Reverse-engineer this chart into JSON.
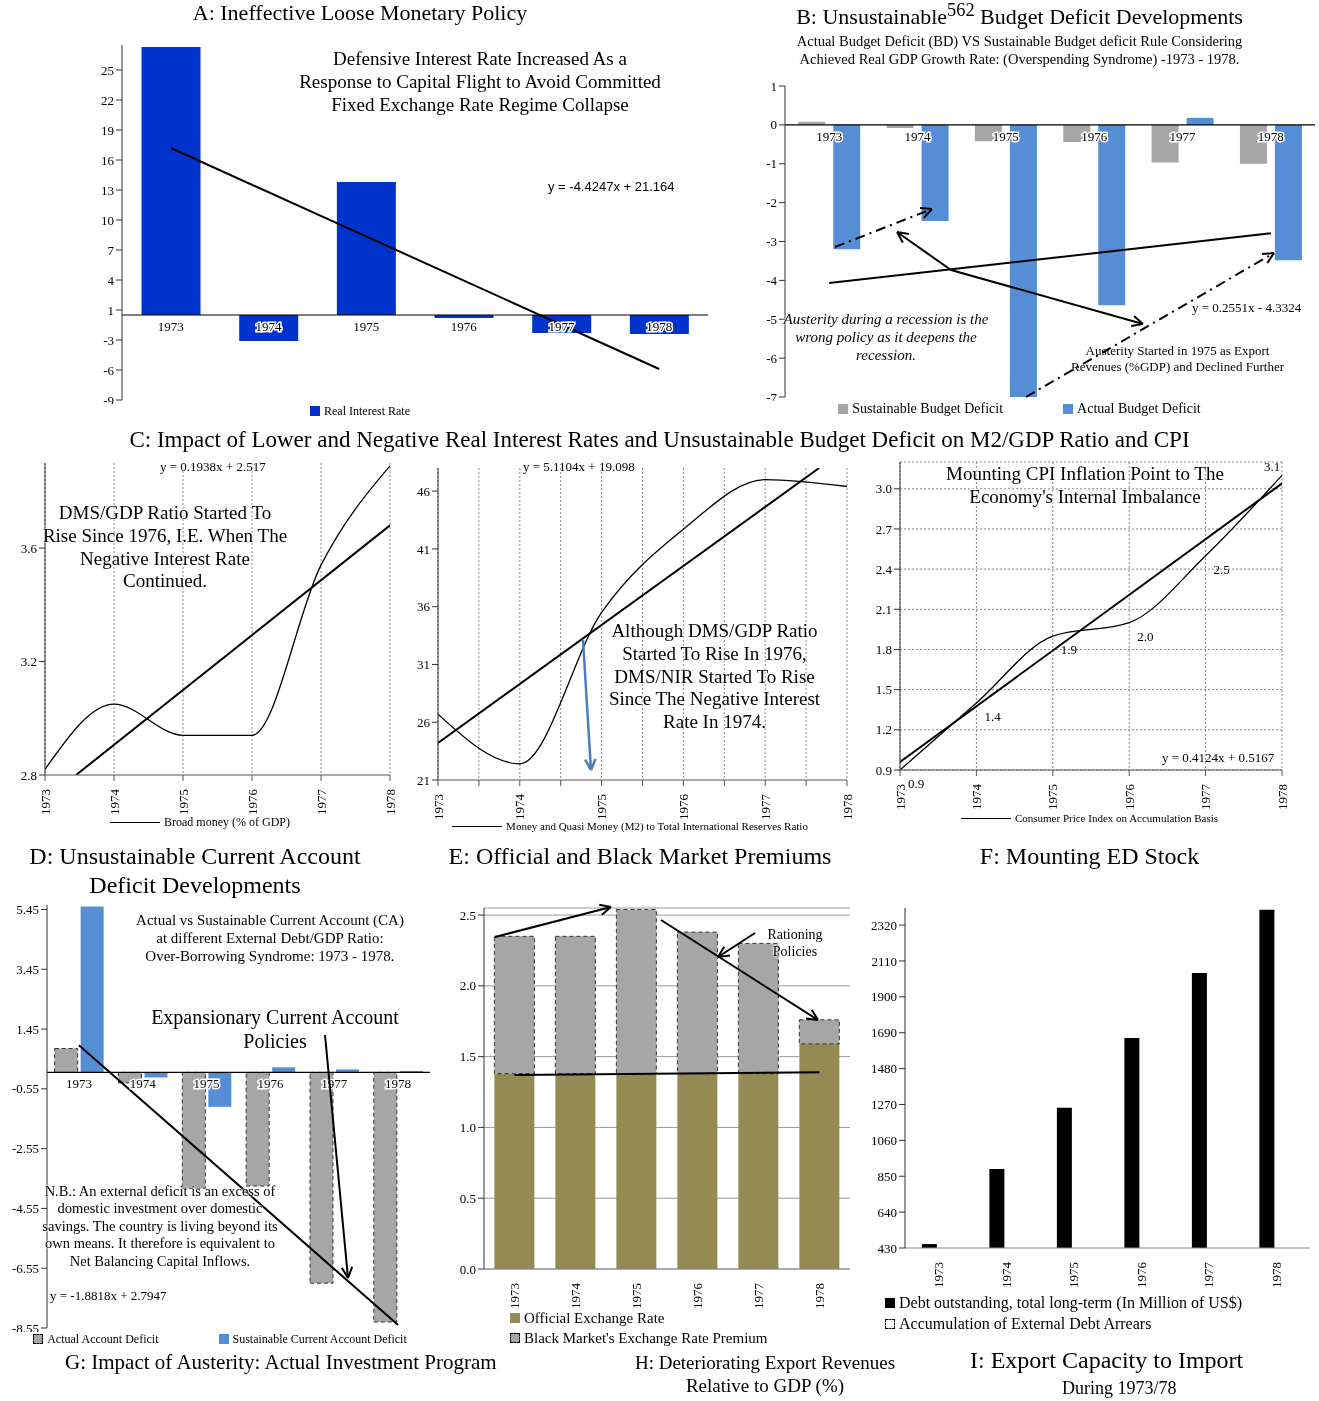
{
  "chart_data": [
    {
      "type": "bar",
      "title": "A: Ineffective Loose Monetary Policy",
      "categories": [
        "1973",
        "1974",
        "1975",
        "1976",
        "1977",
        "1978"
      ],
      "series": [
        {
          "name": "Real Interest Rate",
          "color": "#0033cc",
          "values": [
            26.8,
            -2.6,
            13.3,
            -0.3,
            -1.8,
            -1.9
          ]
        },
        {
          "type": "line",
          "color": "#000000",
          "values": [
            16.7,
            null,
            null,
            null,
            null,
            -5.4
          ]
        }
      ],
      "ylim": [
        -8.5,
        27
      ],
      "yticks": [
        {
          "value": -8.5,
          "label": "-9"
        },
        {
          "value": -5.5,
          "label": "-6"
        },
        {
          "value": -2.5,
          "label": "-3"
        },
        {
          "value": 0.5,
          "label": "1"
        },
        {
          "value": 3.5,
          "label": "4"
        },
        {
          "value": 6.5,
          "label": "7"
        },
        {
          "value": 9.5,
          "label": "10"
        },
        {
          "value": 12.5,
          "label": "13"
        },
        {
          "value": 15.5,
          "label": "16"
        },
        {
          "value": 18.5,
          "label": "19"
        },
        {
          "value": 21.5,
          "label": "22"
        },
        {
          "value": 24.5,
          "label": "25"
        }
      ],
      "legend": "bottom",
      "annotations": [
        "Defensive Interest Rate Increased As a\nResponse to Capital Flight to Avoid Committed\nFixed Exchange Rate Regime Collapse",
        "y = -4.4247x + 21.164"
      ]
    },
    {
      "type": "bar",
      "title": "B: Unsustainable$^{562}$ Budget Deficit Developments",
      "subtitle": "Actual Budget Deficit (BD) VS Sustainable Budget deficit Rule Considering\nAchieved Real GDP Growth Rate: (Overspending Syndrome) -1973 - 1978.",
      "categories": [
        "1973",
        "1974",
        "1975",
        "1976",
        "1977",
        "1978"
      ],
      "series": [
        {
          "name": "Sustainable Budget Deficit",
          "color": "#a6a6a6",
          "values": [
            0.08,
            -0.08,
            -0.42,
            -0.44,
            -0.97,
            -1.0
          ]
        },
        {
          "name": "Actual Budget Deficit",
          "color": "#558ed5",
          "values": [
            -3.2,
            -2.47,
            -7.0,
            -4.64,
            0.18,
            -3.48
          ]
        },
        {
          "type": "line",
          "color": "#000000",
          "values": [
            -4.07,
            null,
            null,
            null,
            null,
            -2.79
          ]
        }
      ],
      "ylim": [
        -7,
        1
      ],
      "yticks": [
        -7,
        -6,
        -5,
        -4,
        -3,
        -2,
        -1,
        0,
        1
      ],
      "legend": "bottom",
      "annotations": [
        "Austerity during a recession is the\nwrong policy as it deepens the\nrecession.",
        "y = 0.2551x - 4.3324",
        "Austerity Started in 1975 as Export\nRevenues (%GDP) and Declined Further"
      ]
    },
    {
      "type": "line",
      "title": "C: Impact of Lower and Negative Real Interest Rates and Unsustainable Budget Deficit on M2/GDP Ratio and CPI",
      "x": [
        1973,
        1974,
        1975,
        1976,
        1977,
        1978
      ],
      "series": [
        {
          "name": "Broad money (% of GDP)",
          "color": "#000000",
          "values": [
            2.82,
            3.05,
            2.94,
            2.94,
            3.54,
            3.89
          ]
        },
        {
          "type": "line",
          "color": "#000000",
          "x": [
            1973.45,
            1978
          ],
          "values": [
            2.8,
            3.68
          ]
        }
      ],
      "xlim": [
        1973,
        1978
      ],
      "xticks": [
        1973,
        1974,
        1975,
        1976,
        1977,
        1978
      ],
      "ylim": [
        2.8,
        3.9
      ],
      "yticks": [
        2.8,
        3.2,
        3.6
      ],
      "grid": "x",
      "legend": "bottom",
      "annotations": [
        "y = 0.1938x + 2.517",
        "DMS/GDP Ratio Started To\nRise Since 1976, I.E. When The\nNegative Interest Rate\nContinued."
      ]
    },
    {
      "type": "line",
      "x": [
        1973,
        1974,
        1975,
        1976,
        1977,
        1978
      ],
      "series": [
        {
          "name": "Money and Quasi Money (M2) to Total International Reserves Ratio",
          "color": "#000000",
          "values": [
            26.7,
            22.4,
            35.5,
            42.7,
            47.0,
            46.4
          ]
        },
        {
          "type": "line",
          "color": "#000000",
          "x": [
            1973,
            1977.66
          ],
          "values": [
            24.2,
            48
          ]
        }
      ],
      "xlim": [
        1973,
        1978
      ],
      "xticks": [
        1973,
        {
          "value": 1973.5,
          "label": null
        },
        1974,
        {
          "value": 1974.5,
          "label": null
        },
        1975,
        {
          "value": 1975.5,
          "label": null
        },
        1976,
        {
          "value": 1976.5,
          "label": null
        },
        1977,
        {
          "value": 1977.5,
          "label": null
        },
        1978
      ],
      "ylim": [
        21,
        48
      ],
      "yticks": [
        21,
        26,
        31,
        36,
        41,
        46
      ],
      "grid": "x",
      "legend": "bottom",
      "annotations": [
        "y = 5.1104x + 19.098",
        "Although DMS/GDP Ratio\nStarted To  Rise In 1976,\nDMS/NIR Started To Rise\nSince The Negative Interest\nRate In 1974."
      ]
    },
    {
      "type": "line",
      "x": [
        1973,
        1974,
        1975,
        1976,
        1977,
        1978
      ],
      "series": [
        {
          "name": "Consumer Price Index on Accumulation Basis",
          "color": "#000000",
          "values": [
            0.9,
            1.4,
            1.9,
            2.0,
            2.5,
            3.1
          ],
          "value_labels": [
            "0.9",
            "1.4",
            "1.9",
            "2.0",
            "2.5",
            "3.1"
          ]
        },
        {
          "type": "line",
          "color": "#000000",
          "x": [
            1973,
            1978
          ],
          "values": [
            0.96,
            3.04
          ]
        }
      ],
      "xlim": [
        1973,
        1978
      ],
      "xticks": [
        1973,
        1974,
        1975,
        1976,
        1977,
        1978
      ],
      "ylim": [
        0.9,
        3.2
      ],
      "yticks": [
        0.9,
        1.2,
        1.5,
        1.8,
        2.1,
        2.4,
        2.7,
        {
          "value": 3,
          "label": "3.0"
        }
      ],
      "grid": true,
      "legend": "bottom",
      "annotations": [
        "Mounting CPI Inflation Point to The\nEconomy's Internal Imbalance",
        "y = 0.4124x + 0.5167"
      ]
    },
    {
      "type": "bar",
      "title": "D: Unsustainable Current Account Deficit Developments",
      "categories": [
        "1973",
        "1974",
        "1975",
        "1976",
        "1977",
        "1978"
      ],
      "series": [
        {
          "name": "Actual Account Deficit",
          "color": "#a6a6a6",
          "line_style": "dashed",
          "values": [
            0.8,
            -0.35,
            -3.88,
            -3.8,
            -7.05,
            -8.35
          ]
        },
        {
          "name": "Sustainable Current Account Deficit",
          "color": "#558ed5",
          "values": [
            5.55,
            -0.17,
            -1.15,
            0.17,
            0.1,
            0.05
          ]
        },
        {
          "type": "line",
          "color": "#000000",
          "values": [
            0.91,
            null,
            null,
            null,
            null,
            -8.45
          ]
        }
      ],
      "ylim": [
        -8.55,
        5.6
      ],
      "yticks": [
        -8.55,
        -6.55,
        -4.55,
        -2.55,
        -0.55,
        1.45,
        3.45,
        5.45
      ],
      "legend": "bottom",
      "annotations": [
        "Actual vs Sustainable Current Account (CA)\nat different External Debt/GDP Ratio:\nOver-Borrowing Syndrome: 1973 - 1978.",
        "Expansionary Current Account\nPolicies",
        "N.B.: An external deficit is an excess of\ndomestic investment over domestic\nsavings. The country is living beyond its\nown means. It therefore is equivalent to\nNet Balancing Capital Inflows.",
        "y = -1.8818x + 2.7947",
        "G: Impact of Austerity: Actual Investment Program"
      ]
    },
    {
      "type": "bar",
      "title": "E: Official and Black Market Premiums",
      "categories": [
        "1973",
        "1974",
        "1975",
        "1976",
        "1977",
        "1978"
      ],
      "stacked": true,
      "series": [
        {
          "name": "Official Exchange Rate",
          "color": "#948a54",
          "values": [
            1.38,
            1.38,
            1.38,
            1.38,
            1.38,
            1.59
          ]
        },
        {
          "name": "Black Market's Exchange Rate Premium",
          "color": "#a6a6a6",
          "line_style": "dashed",
          "values": [
            0.97,
            0.97,
            1.16,
            1.0,
            0.92,
            0.17
          ]
        },
        {
          "type": "line",
          "color": "#000000",
          "values": [
            1.37,
            null,
            null,
            null,
            null,
            1.39
          ]
        }
      ],
      "ylim": [
        0,
        2.55
      ],
      "yticks": [
        {
          "value": 0,
          "label": "0.0"
        },
        {
          "value": 0.5,
          "label": "0.5"
        },
        {
          "value": 1,
          "label": "1.0"
        },
        {
          "value": 1.5,
          "label": "1.5"
        },
        {
          "value": 2,
          "label": "2.0"
        },
        {
          "value": 2.5,
          "label": "2.5"
        }
      ],
      "grid": "y",
      "legend": "bottom left",
      "annotations": [
        "Rationing\nPolicies",
        "H: Deteriorating Export Revenues\nRelative to GDP (%)"
      ]
    },
    {
      "type": "bar",
      "title": "F: Mounting ED Stock",
      "categories": [
        "1973",
        "1974",
        "1975",
        "1976",
        "1977",
        "1978"
      ],
      "series": [
        {
          "name": "Debt outstanding, total long-term (In Million of US$)",
          "color": "#000000",
          "values": [
            453,
            893,
            1251,
            1659,
            2040,
            2410
          ]
        },
        {
          "name": "Accumulation of External Debt Arrears",
          "color": "#ffffff",
          "line_style": "dashed",
          "values": [
            null,
            null,
            null,
            null,
            null,
            null
          ]
        }
      ],
      "ylim": [
        430,
        2420
      ],
      "yticks": [
        430,
        640,
        850,
        1060,
        1270,
        1480,
        1690,
        1900,
        2110,
        2320
      ],
      "legend": "bottom left",
      "annotations": [
        "I: Export Capacity to Import",
        "During 1973/78"
      ]
    }
  ]
}
